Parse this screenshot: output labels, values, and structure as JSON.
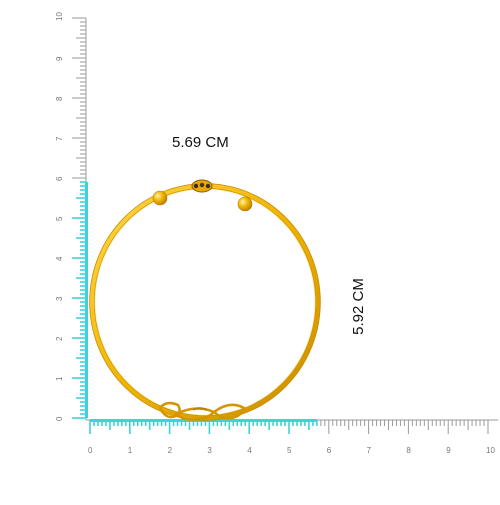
{
  "measurements": {
    "width_label": "5.69 CM",
    "height_label": "5.92 CM"
  },
  "ruler": {
    "unit": "cm",
    "numbers": [
      "0",
      "1",
      "2",
      "3",
      "4",
      "5",
      "6",
      "7",
      "8",
      "9",
      "10"
    ],
    "highlight_color": "#3ed3d8",
    "tick_color": "#9a9a9a"
  },
  "bangle": {
    "gold_color": "#f0b400",
    "gold_dark": "#c98a00",
    "gold_light": "#ffd84a"
  }
}
